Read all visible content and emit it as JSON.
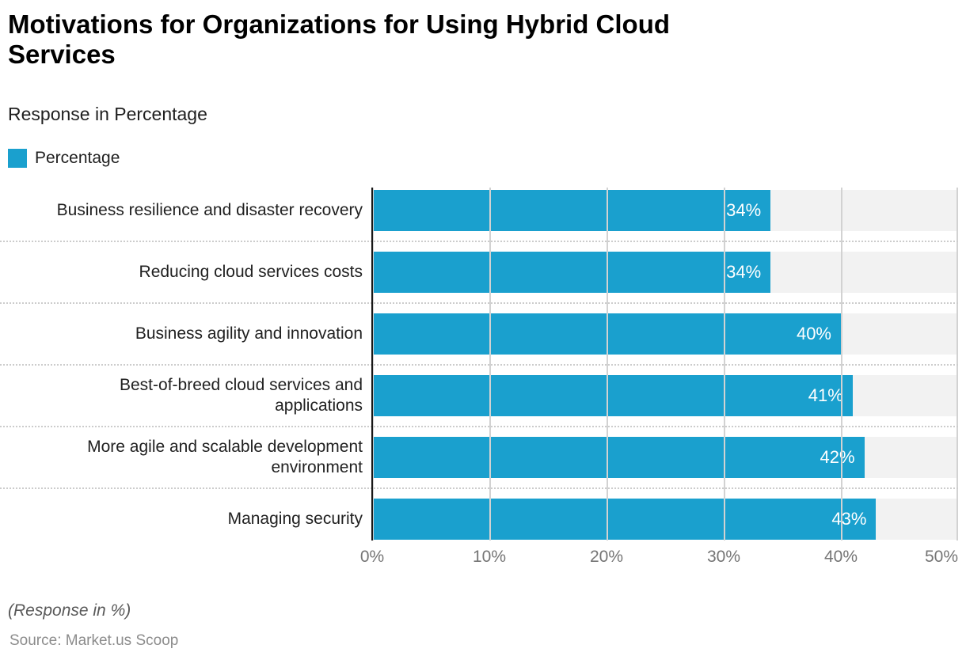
{
  "header": {
    "title": "Motivations for Organizations for Using Hybrid Cloud\nServices",
    "subtitle": "Response in Percentage"
  },
  "legend": {
    "label": "Percentage",
    "swatch_color": "#1AA0CE"
  },
  "chart_data": {
    "type": "bar",
    "orientation": "horizontal",
    "title": "Motivations for Organizations for Using Hybrid Cloud Services",
    "subtitle": "Response in Percentage",
    "categories": [
      "Business resilience and disaster recovery",
      "Reducing cloud services costs",
      "Business agility and innovation",
      "Best-of-breed cloud services and\napplications",
      "More agile and scalable development\nenvironment",
      "Managing security"
    ],
    "series": [
      {
        "name": "Percentage",
        "values": [
          34,
          34,
          40,
          41,
          42,
          43
        ]
      }
    ],
    "value_labels": [
      "34%",
      "34%",
      "40%",
      "41%",
      "42%",
      "43%"
    ],
    "xlim": [
      0,
      50
    ],
    "x_ticks": [
      "0%",
      "10%",
      "20%",
      "30%",
      "40%",
      "50%"
    ],
    "grid": true,
    "legend_position": "top-left",
    "colors": {
      "bar": "#1AA0CE",
      "track": "#F2F2F2",
      "gridline": "#D2D2D2",
      "axis_line": "#181818",
      "tick_label": "#757575"
    }
  },
  "footer": {
    "note": "(Response in %)",
    "source": "Source: Market.us Scoop"
  }
}
